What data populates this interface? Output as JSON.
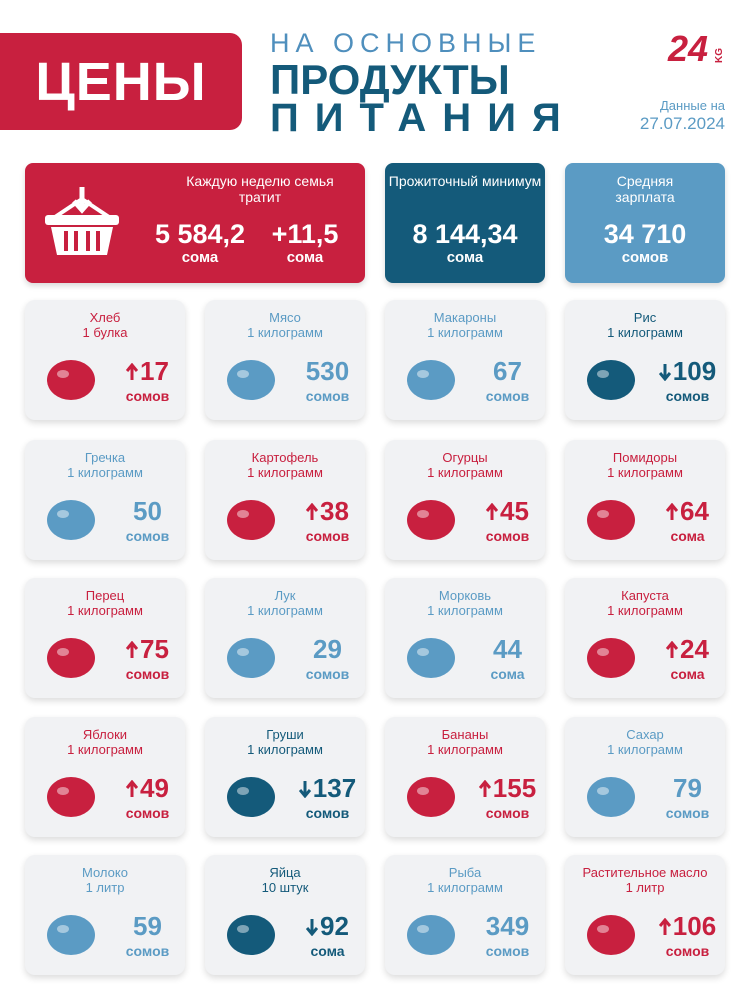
{
  "header": {
    "brand": "ЦЕНЫ",
    "title_line1": "НА ОСНОВНЫЕ",
    "title_line2": "ПРОДУКТЫ",
    "title_line3": "ПИТАНИЯ",
    "logo": "24",
    "logo_suffix": "KG",
    "date_label": "Данные на",
    "date": "27.07.2024"
  },
  "summary": {
    "weekly": {
      "label": "Каждую неделю семья тратит",
      "value": "5 584,2",
      "unit": "сома",
      "change": "+11,5",
      "change_unit": "сома"
    },
    "minimum": {
      "label": "Прожиточный минимум",
      "value": "8 144,34",
      "unit": "сома"
    },
    "salary": {
      "label": "Средняя зарплата",
      "value": "34 710",
      "unit": "сомов"
    }
  },
  "items": [
    {
      "name": "Хлеб",
      "unit": "1 булка",
      "price": 17,
      "currency": "сомов",
      "trend": "up"
    },
    {
      "name": "Мясо",
      "unit": "1 килограмм",
      "price": 530,
      "currency": "сомов",
      "trend": null
    },
    {
      "name": "Макароны",
      "unit": "1 килограмм",
      "price": 67,
      "currency": "сомов",
      "trend": null
    },
    {
      "name": "Рис",
      "unit": "1 килограмм",
      "price": 109,
      "currency": "сомов",
      "trend": "down"
    },
    {
      "name": "Гречка",
      "unit": "1 килограмм",
      "price": 50,
      "currency": "сомов",
      "trend": null
    },
    {
      "name": "Картофель",
      "unit": "1 килограмм",
      "price": 38,
      "currency": "сомов",
      "trend": "up"
    },
    {
      "name": "Огурцы",
      "unit": "1 килограмм",
      "price": 45,
      "currency": "сомов",
      "trend": "up"
    },
    {
      "name": "Помидоры",
      "unit": "1 килограмм",
      "price": 64,
      "currency": "сома",
      "trend": "up"
    },
    {
      "name": "Перец",
      "unit": "1 килограмм",
      "price": 75,
      "currency": "сомов",
      "trend": "up"
    },
    {
      "name": "Лук",
      "unit": "1 килограмм",
      "price": 29,
      "currency": "сомов",
      "trend": null
    },
    {
      "name": "Морковь",
      "unit": "1 килограмм",
      "price": 44,
      "currency": "сома",
      "trend": null
    },
    {
      "name": "Капуста",
      "unit": "1 килограмм",
      "price": 24,
      "currency": "сома",
      "trend": "up"
    },
    {
      "name": "Яблоки",
      "unit": "1 килограмм",
      "price": 49,
      "currency": "сомов",
      "trend": "up"
    },
    {
      "name": "Груши",
      "unit": "1 килограмм",
      "price": 137,
      "currency": "сомов",
      "trend": "down"
    },
    {
      "name": "Бананы",
      "unit": "1 килограмм",
      "price": 155,
      "currency": "сомов",
      "trend": "up"
    },
    {
      "name": "Сахар",
      "unit": "1 килограмм",
      "price": 79,
      "currency": "сомов",
      "trend": null
    },
    {
      "name": "Молоко",
      "unit": "1 литр",
      "price": 59,
      "currency": "сомов",
      "trend": null
    },
    {
      "name": "Яйца",
      "unit": "10 штук",
      "price": 92,
      "currency": "сома",
      "trend": "down"
    },
    {
      "name": "Рыба",
      "unit": "1 килограмм",
      "price": 349,
      "currency": "сомов",
      "trend": null
    },
    {
      "name": "Растительное масло",
      "unit": "1 литр",
      "price": 106,
      "currency": "сомов",
      "trend": "up"
    }
  ]
}
